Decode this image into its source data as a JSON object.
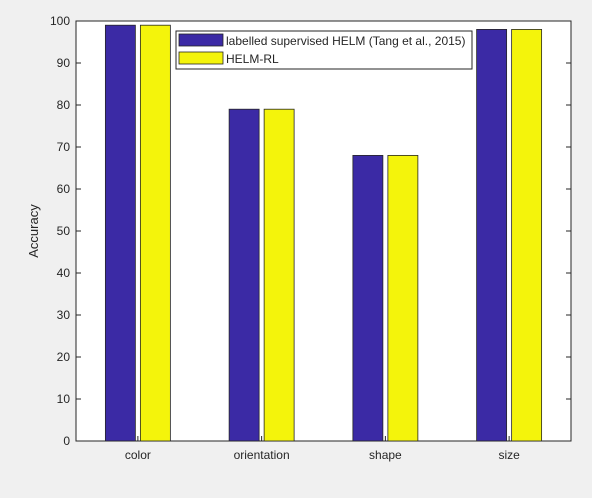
{
  "chart_data": {
    "type": "bar",
    "title": "",
    "xlabel": "",
    "ylabel": "Accuracy",
    "ylim": [
      0,
      100
    ],
    "yticks": [
      0,
      10,
      20,
      30,
      40,
      50,
      60,
      70,
      80,
      90,
      100
    ],
    "categories": [
      "color",
      "orientation",
      "shape",
      "size"
    ],
    "series": [
      {
        "name": "labelled supervised HELM (Tang et al., 2015)",
        "color": "#3b2aa5",
        "values": [
          99,
          79,
          68,
          98
        ]
      },
      {
        "name": "HELM-RL",
        "color": "#f4f40b",
        "values": [
          99,
          79,
          68,
          98
        ]
      }
    ],
    "grid": false,
    "legend_position": "top-right"
  }
}
